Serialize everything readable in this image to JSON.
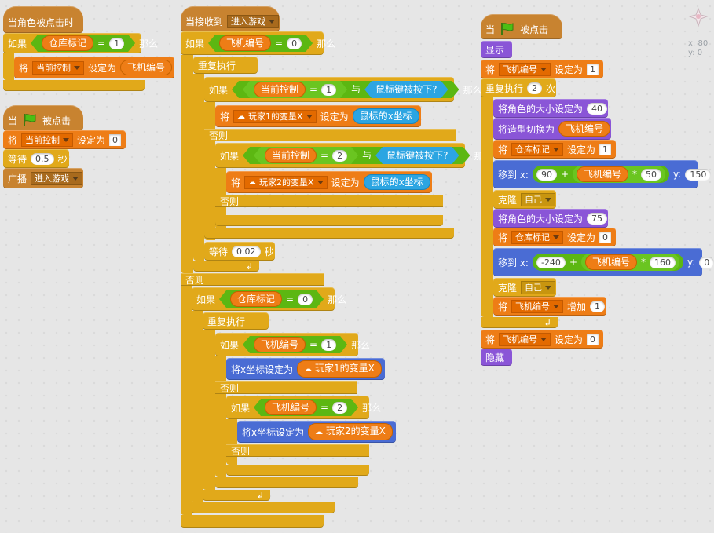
{
  "stage": {
    "x_label": "x: 80",
    "y_label": "y: 0",
    "thumb_icon": "sprite-icon"
  },
  "s1": {
    "hat": "当角色被点击时",
    "if_kw": "如果",
    "var": "仓库标记",
    "eq": "=",
    "val": "1",
    "then": "那么",
    "set_kw": "将",
    "set_var": "当前控制",
    "set_to": "设定为",
    "set_val": "飞机编号"
  },
  "s2": {
    "hat_when": "当",
    "hat_clicked": "被点击",
    "set_kw": "将",
    "set_var": "当前控制",
    "set_to": "设定为",
    "set_val": "0",
    "wait_kw": "等待",
    "wait_val": "0.5",
    "wait_unit": "秒",
    "bc_kw": "广播",
    "bc_msg": "进入游戏"
  },
  "s3": {
    "hat": "当接收到",
    "hat_msg": "进入游戏",
    "if1_kw": "如果",
    "if1_var": "飞机编号",
    "if1_eq": "=",
    "if1_val": "0",
    "if1_then": "那么",
    "forever": "重复执行",
    "if2_kw": "如果",
    "if2_var": "当前控制",
    "if2_eq": "=",
    "if2_val": "1",
    "if2_and": "与",
    "if2_sense": "鼠标键被按下?",
    "if2_then": "那么",
    "set1_kw": "将",
    "set1_var": "玩家1的变量X",
    "set1_to": "设定为",
    "set1_val": "鼠标的x坐标",
    "else": "否则",
    "if3_kw": "如果",
    "if3_var": "当前控制",
    "if3_eq": "=",
    "if3_val": "2",
    "if3_and": "与",
    "if3_sense": "鼠标键被按下?",
    "if3_then": "那么",
    "set2_kw": "将",
    "set2_var": "玩家2的变量X",
    "set2_to": "设定为",
    "set2_val": "鼠标的x坐标",
    "else2": "否则",
    "wait_kw": "等待",
    "wait_val": "0.02",
    "wait_unit": "秒",
    "else_outer": "否则",
    "if4_kw": "如果",
    "if4_var": "仓库标记",
    "if4_eq": "=",
    "if4_val": "0",
    "if4_then": "那么",
    "forever2": "重复执行",
    "if5_kw": "如果",
    "if5_var": "飞机编号",
    "if5_eq": "=",
    "if5_val": "1",
    "if5_then": "那么",
    "setx1": "将x坐标设定为",
    "setx1_val": "玩家1的变量X",
    "else3": "否则",
    "if6_kw": "如果",
    "if6_var": "飞机编号",
    "if6_eq": "=",
    "if6_val": "2",
    "if6_then": "那么",
    "setx2": "将x坐标设定为",
    "setx2_val": "玩家2的变量X",
    "else4": "否则"
  },
  "s4": {
    "hat_when": "当",
    "hat_clicked": "被点击",
    "show": "显示",
    "set1_kw": "将",
    "set1_var": "飞机编号",
    "set1_to": "设定为",
    "set1_val": "1",
    "repeat": "重复执行",
    "repeat_n": "2",
    "repeat_unit": "次",
    "size1": "将角色的大小设定为",
    "size1_val": "40",
    "costume": "将造型切换为",
    "costume_val": "飞机编号",
    "set2_kw": "将",
    "set2_var": "仓库标记",
    "set2_to": "设定为",
    "set2_val": "1",
    "goto1": "移到 x:",
    "goto1_a": "90",
    "goto1_plus": "+",
    "goto1_var": "飞机编号",
    "goto1_mul": "*",
    "goto1_b": "50",
    "goto1_y": "y:",
    "goto1_yv": "150",
    "clone1": "克隆",
    "clone1_val": "自己",
    "size2": "将角色的大小设定为",
    "size2_val": "75",
    "set3_kw": "将",
    "set3_var": "仓库标记",
    "set3_to": "设定为",
    "set3_val": "0",
    "goto2": "移到 x:",
    "goto2_a": "-240",
    "goto2_plus": "+",
    "goto2_var": "飞机编号",
    "goto2_mul": "*",
    "goto2_b": "160",
    "goto2_y": "y:",
    "goto2_yv": "0",
    "clone2": "克隆",
    "clone2_val": "自己",
    "chg_kw": "将",
    "chg_var": "飞机编号",
    "chg_by": "增加",
    "chg_val": "1",
    "set4_kw": "将",
    "set4_var": "飞机编号",
    "set4_to": "设定为",
    "set4_val": "0",
    "hide": "隐藏"
  }
}
